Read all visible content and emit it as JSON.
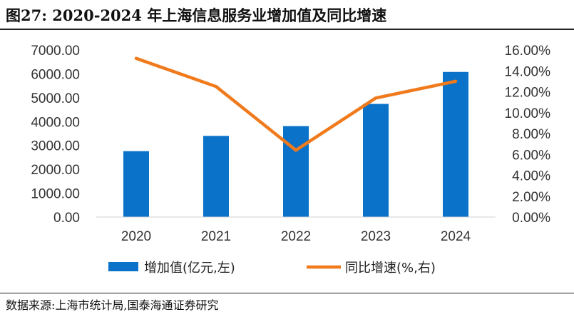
{
  "title": "图27:  2020-2024 年上海信息服务业增加值及同比增速",
  "source": "数据来源:上海市统计局,国泰海通证券研究",
  "chart_data": {
    "type": "bar",
    "categories": [
      "2020",
      "2021",
      "2022",
      "2023",
      "2024"
    ],
    "series": [
      {
        "name": "增加值(亿元,左)",
        "type": "bar",
        "axis": "left",
        "values": [
          2760,
          3400,
          3810,
          4740,
          6080
        ],
        "color": "#0a72c9"
      },
      {
        "name": "同比增速(%,右)",
        "type": "line",
        "axis": "right",
        "values": [
          15.2,
          12.5,
          6.4,
          11.4,
          13.0
        ],
        "color": "#f07a1c"
      }
    ],
    "left_axis": {
      "min": 0,
      "max": 7000,
      "step": 1000,
      "tick_labels": [
        "0.00",
        "1000.00",
        "2000.00",
        "3000.00",
        "4000.00",
        "5000.00",
        "6000.00",
        "7000.00"
      ]
    },
    "right_axis": {
      "min": 0,
      "max": 16,
      "step": 2,
      "tick_labels": [
        "0.00%",
        "2.00%",
        "4.00%",
        "6.00%",
        "8.00%",
        "10.00%",
        "12.00%",
        "14.00%",
        "16.00%"
      ]
    },
    "legend_position": "bottom"
  }
}
